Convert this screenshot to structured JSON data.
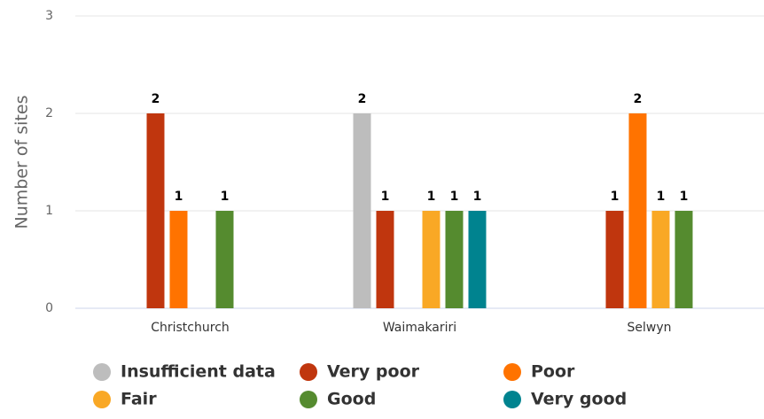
{
  "chart_data": {
    "type": "bar",
    "y_label": "Number of sites",
    "categories": [
      "Christchurch",
      "Waimakariri",
      "Selwyn"
    ],
    "series": [
      {
        "name": "Insufficient data",
        "color": "#bdbdbd",
        "values": [
          0,
          2,
          0
        ]
      },
      {
        "name": "Very poor",
        "color": "#c0360e",
        "values": [
          2,
          1,
          1
        ]
      },
      {
        "name": "Poor",
        "color": "#ff7300",
        "values": [
          1,
          0,
          2
        ]
      },
      {
        "name": "Fair",
        "color": "#f9a825",
        "values": [
          0,
          1,
          1
        ]
      },
      {
        "name": "Good",
        "color": "#558b2f",
        "values": [
          1,
          1,
          1
        ]
      },
      {
        "name": "Very good",
        "color": "#00838f",
        "values": [
          0,
          1,
          0
        ]
      }
    ],
    "ylim": [
      0,
      3
    ],
    "yticks": [
      0,
      1,
      2,
      3
    ],
    "grid": true
  }
}
